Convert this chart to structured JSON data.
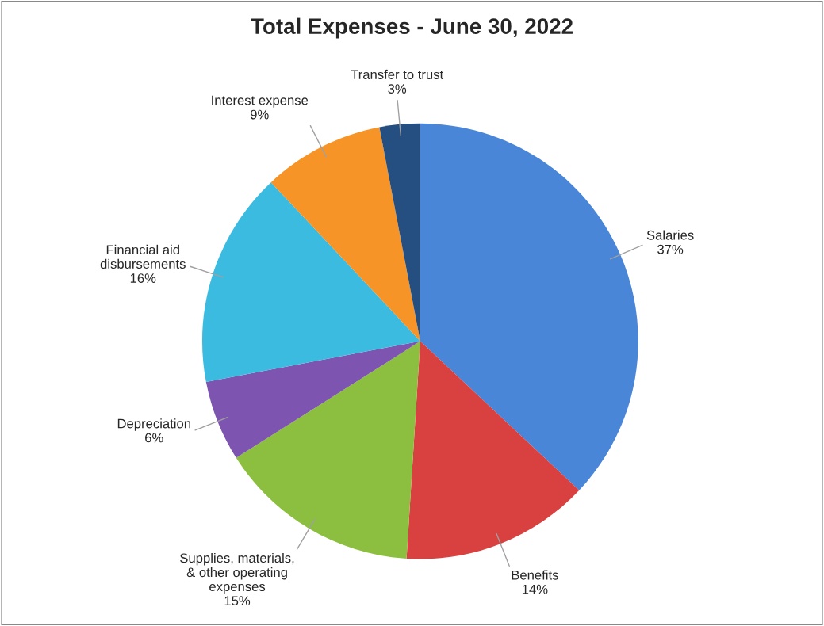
{
  "chart_data": {
    "type": "pie",
    "title": "Total Expenses - June 30, 2022",
    "categories": [
      "Salaries",
      "Benefits",
      "Supplies, materials,\n& other operating\nexpenses",
      "Depreciation",
      "Financial aid\ndisbursements",
      "Interest expense",
      "Transfer to trust"
    ],
    "values": [
      37,
      14,
      15,
      6,
      16,
      9,
      3
    ],
    "value_labels": [
      "37%",
      "14%",
      "15%",
      "6%",
      "16%",
      "9%",
      "3%"
    ],
    "colors": [
      "#4a86d8",
      "#d94040",
      "#8cbf3f",
      "#7d55b0",
      "#3bbbe0",
      "#f79428",
      "#254f80"
    ]
  }
}
